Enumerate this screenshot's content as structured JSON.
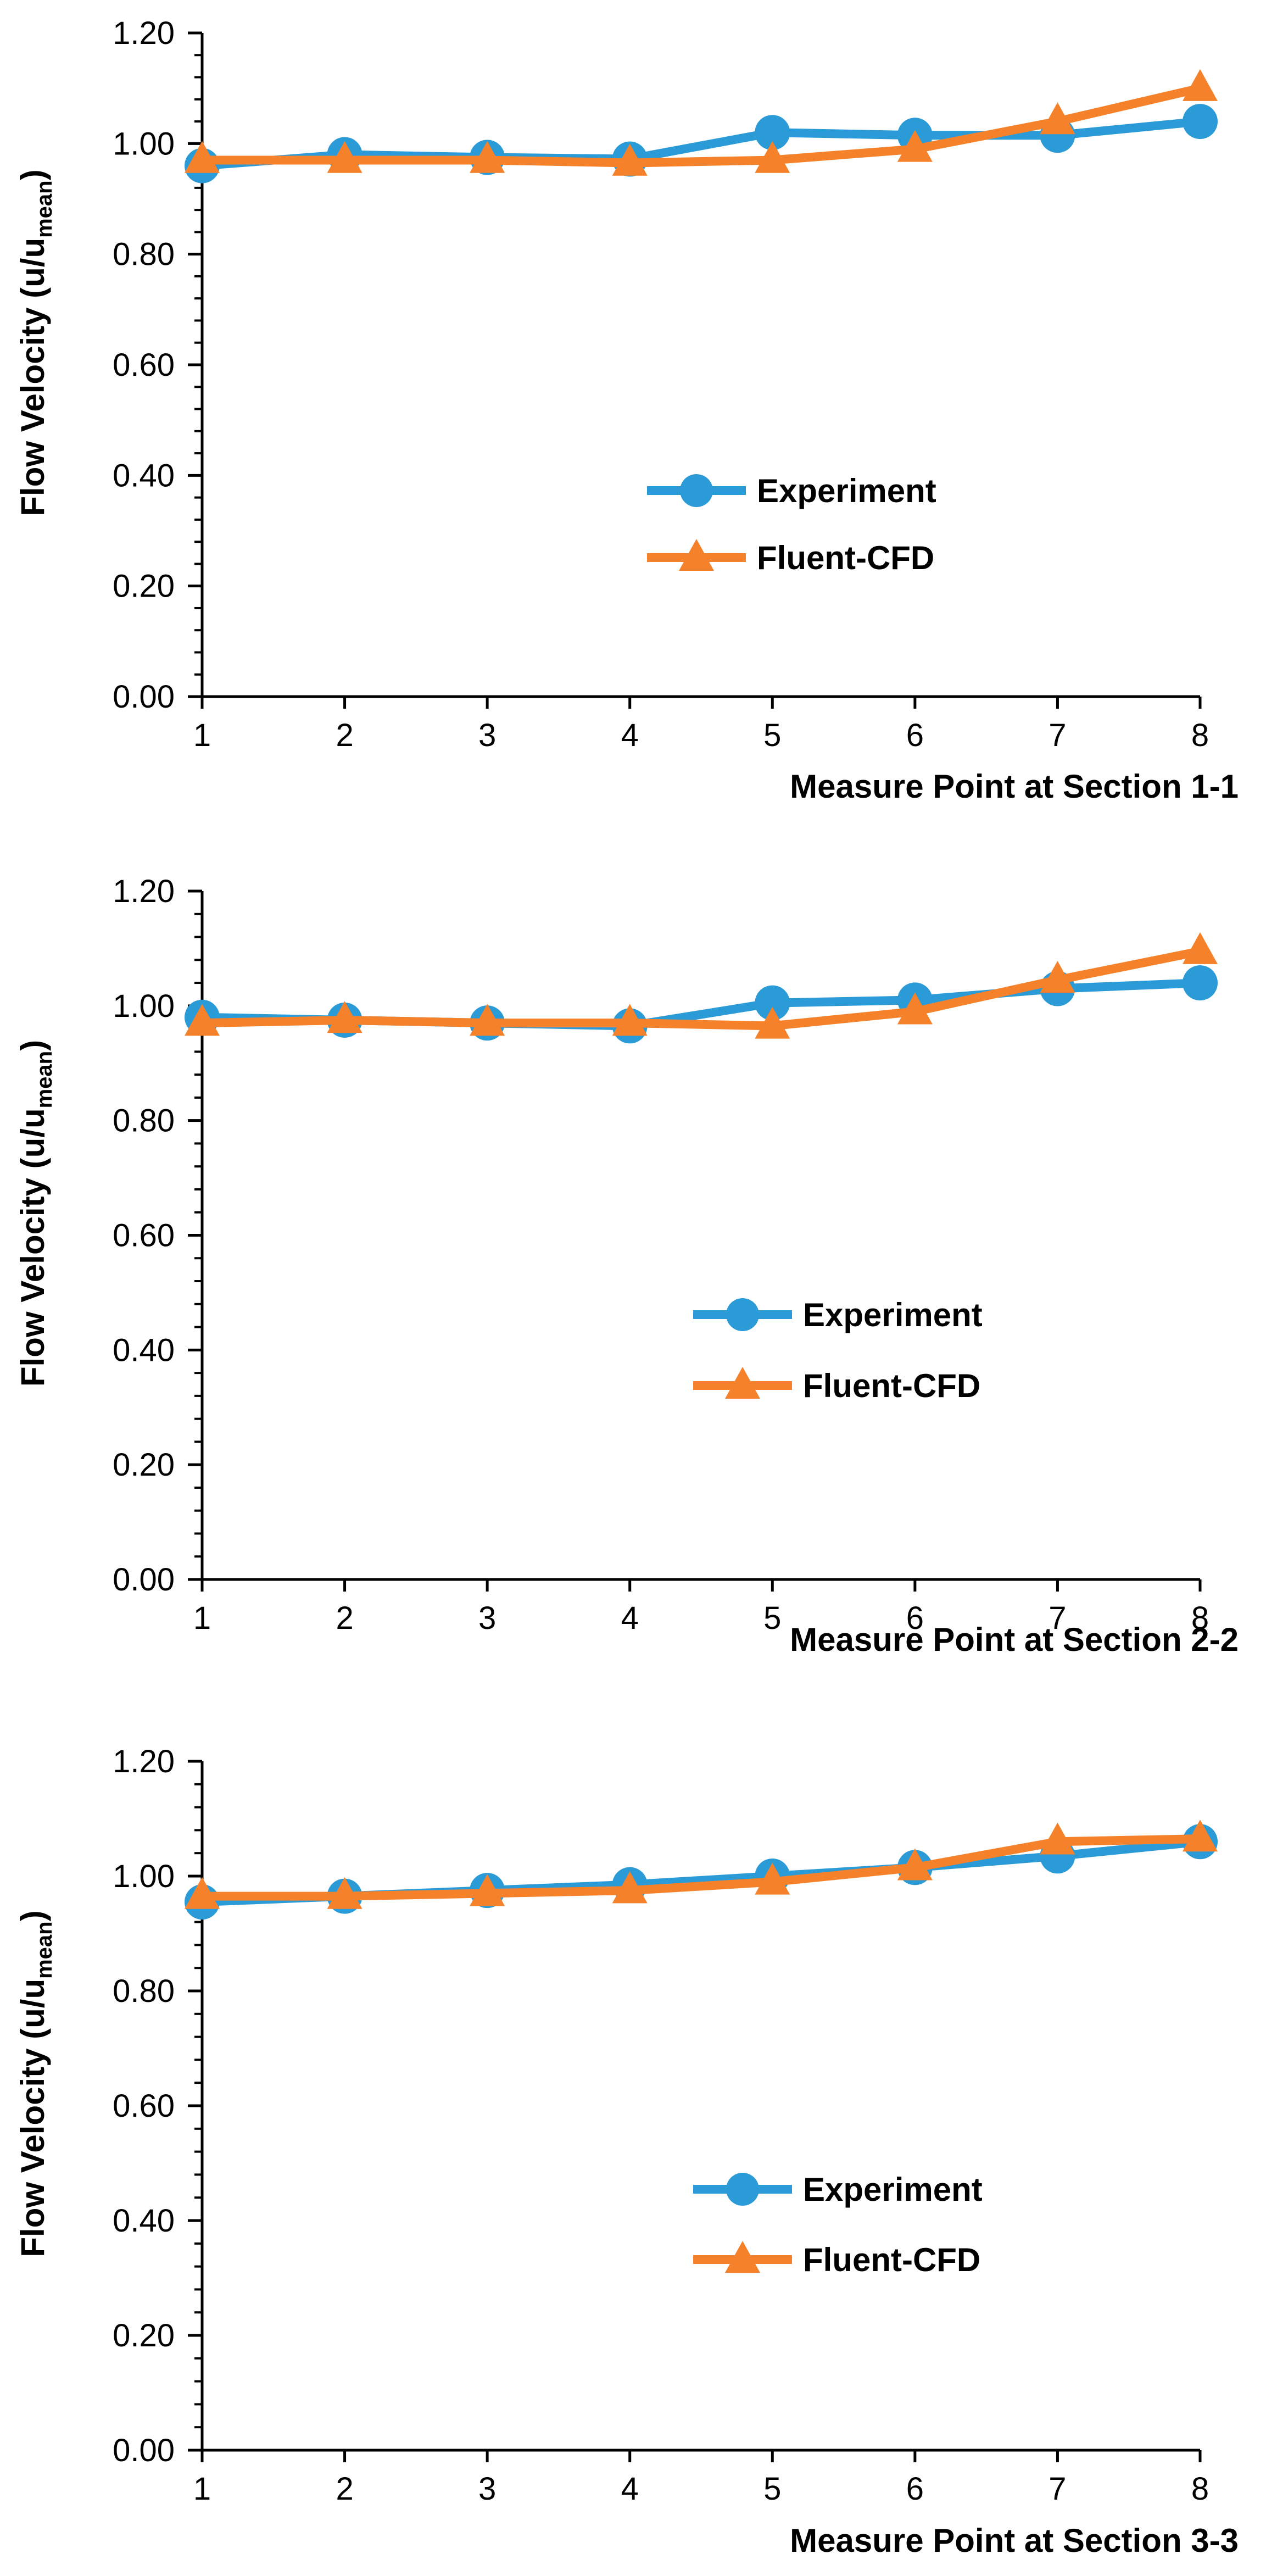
{
  "colors": {
    "experiment": "#2b9bd8",
    "cfd": "#f5822a",
    "axis": "#000000"
  },
  "chart_data": [
    {
      "type": "line",
      "title": "",
      "xlabel": "Measure Point at Section 1-1",
      "ylabel_main": "Flow Velocity (u/u",
      "ylabel_sub": "mean",
      "ylabel_close": ")",
      "x": [
        1,
        2,
        3,
        4,
        5,
        6,
        7,
        8
      ],
      "xticks": [
        "1",
        "2",
        "3",
        "4",
        "5",
        "6",
        "7",
        "8"
      ],
      "yticks": [
        "0.00",
        "0.20",
        "0.40",
        "0.60",
        "0.80",
        "1.00",
        "1.20"
      ],
      "ylim": [
        0,
        1.2
      ],
      "legend": [
        "Experiment",
        "Fluent-CFD"
      ],
      "series": [
        {
          "name": "Experiment",
          "marker": "circle",
          "values": [
            0.96,
            0.98,
            0.975,
            0.972,
            1.02,
            1.015,
            1.015,
            1.04
          ]
        },
        {
          "name": "Fluent-CFD",
          "marker": "triangle",
          "values": [
            0.97,
            0.97,
            0.97,
            0.965,
            0.97,
            0.99,
            1.04,
            1.1
          ]
        }
      ]
    },
    {
      "type": "line",
      "title": "",
      "xlabel": "Measure Point at Section 2-2",
      "ylabel_main": "Flow Velocity (u/u",
      "ylabel_sub": "mean",
      "ylabel_close": ")",
      "x": [
        1,
        2,
        3,
        4,
        5,
        6,
        7,
        8
      ],
      "xticks": [
        "1",
        "2",
        "3",
        "4",
        "5",
        "6",
        "7",
        "8"
      ],
      "yticks": [
        "0.00",
        "0.20",
        "0.40",
        "0.60",
        "0.80",
        "1.00",
        "1.20"
      ],
      "ylim": [
        0,
        1.2
      ],
      "legend": [
        "Experiment",
        "Fluent-CFD"
      ],
      "series": [
        {
          "name": "Experiment",
          "marker": "circle",
          "values": [
            0.98,
            0.975,
            0.97,
            0.965,
            1.005,
            1.01,
            1.03,
            1.04
          ]
        },
        {
          "name": "Fluent-CFD",
          "marker": "triangle",
          "values": [
            0.97,
            0.975,
            0.97,
            0.97,
            0.965,
            0.99,
            1.045,
            1.095
          ]
        }
      ]
    },
    {
      "type": "line",
      "title": "",
      "xlabel": "Measure Point at Section 3-3",
      "ylabel_main": "Flow Velocity (u/u",
      "ylabel_sub": "mean",
      "ylabel_close": ")",
      "x": [
        1,
        2,
        3,
        4,
        5,
        6,
        7,
        8
      ],
      "xticks": [
        "1",
        "2",
        "3",
        "4",
        "5",
        "6",
        "7",
        "8"
      ],
      "yticks": [
        "0.00",
        "0.20",
        "0.40",
        "0.60",
        "0.80",
        "1.00",
        "1.20"
      ],
      "ylim": [
        0,
        1.2
      ],
      "legend": [
        "Experiment",
        "Fluent-CFD"
      ],
      "series": [
        {
          "name": "Experiment",
          "marker": "circle",
          "values": [
            0.955,
            0.965,
            0.975,
            0.985,
            1.0,
            1.015,
            1.035,
            1.06
          ]
        },
        {
          "name": "Fluent-CFD",
          "marker": "triangle",
          "values": [
            0.965,
            0.965,
            0.97,
            0.975,
            0.99,
            1.015,
            1.06,
            1.065
          ]
        }
      ]
    }
  ]
}
